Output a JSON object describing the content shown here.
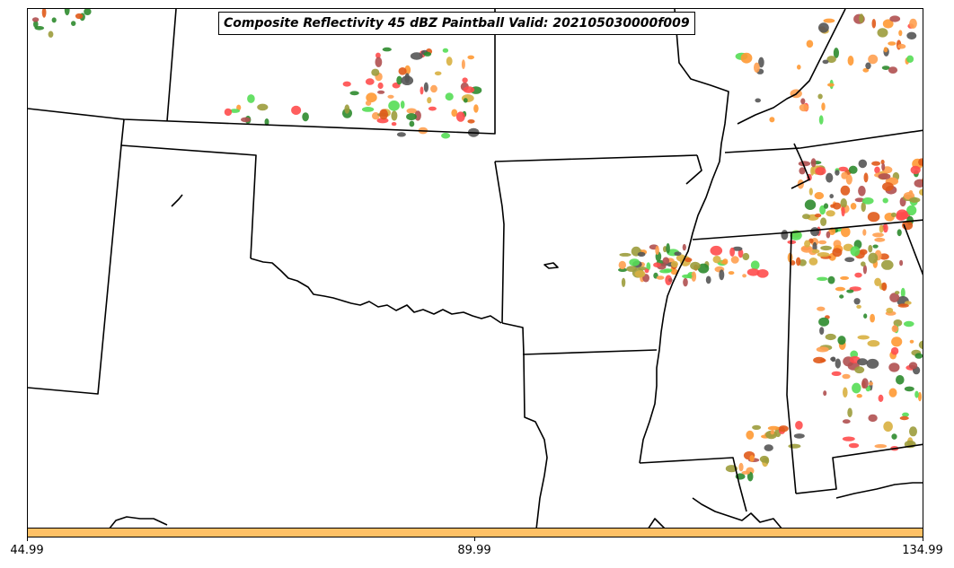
{
  "title": "Composite Reflectivity 45 dBZ Paintball Valid: 202105030000f009",
  "colorbar": {
    "color": "#ffc166",
    "ticks": [
      "44.99",
      "89.99",
      "134.99"
    ]
  },
  "map_colors": {
    "boundary": "#000000",
    "paintball": [
      "#ff4d4d",
      "#ff9933",
      "#e05a1a",
      "#55dd55",
      "#2e8b2e",
      "#9c9c3c",
      "#555555",
      "#b05050",
      "#d8b040",
      "#ffa050"
    ]
  }
}
